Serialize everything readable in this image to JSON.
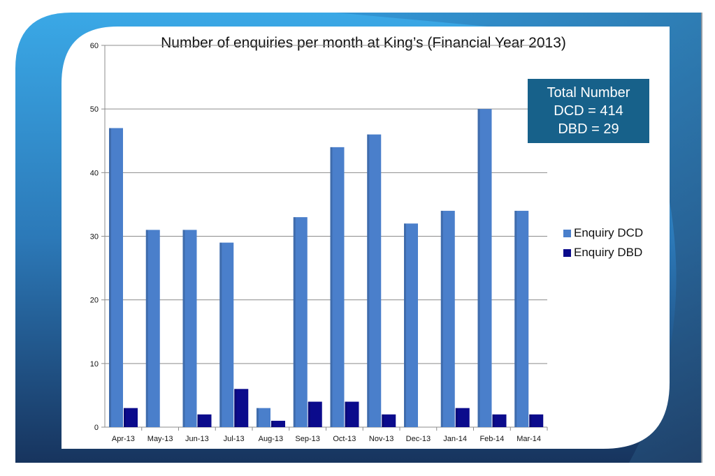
{
  "slide": {
    "colors": {
      "frame_light": "#3da9e6",
      "frame_dark": "#1a3d6b",
      "frame_mid": "#2a6aa6",
      "panel": "#ffffff"
    }
  },
  "info_box": {
    "line1": "Total Number",
    "line2": "DCD = 414",
    "line3": "DBD = 29",
    "color": "#17618a"
  },
  "chart_data": {
    "type": "bar",
    "title": "Number of enquiries per month at King’s (Financial Year 2013)",
    "xlabel": "",
    "ylabel": "",
    "ylim": [
      0,
      60
    ],
    "yticks": [
      "0",
      "10",
      "20",
      "30",
      "40",
      "50",
      "60"
    ],
    "categories": [
      "Apr-13",
      "May-13",
      "Jun-13",
      "Jul-13",
      "Aug-13",
      "Sep-13",
      "Oct-13",
      "Nov-13",
      "Dec-13",
      "Jan-14",
      "Feb-14",
      "Mar-14"
    ],
    "series": [
      {
        "name": "Enquiry DCD",
        "color": "#4a7fcb",
        "values": [
          47,
          31,
          31,
          29,
          3,
          33,
          44,
          46,
          32,
          34,
          50,
          34
        ]
      },
      {
        "name": "Enquiry DBD",
        "color": "#0b0b8c",
        "values": [
          3,
          0,
          2,
          6,
          1,
          4,
          4,
          2,
          0,
          3,
          2,
          2
        ]
      }
    ],
    "grid": true,
    "legend_position": "right"
  }
}
